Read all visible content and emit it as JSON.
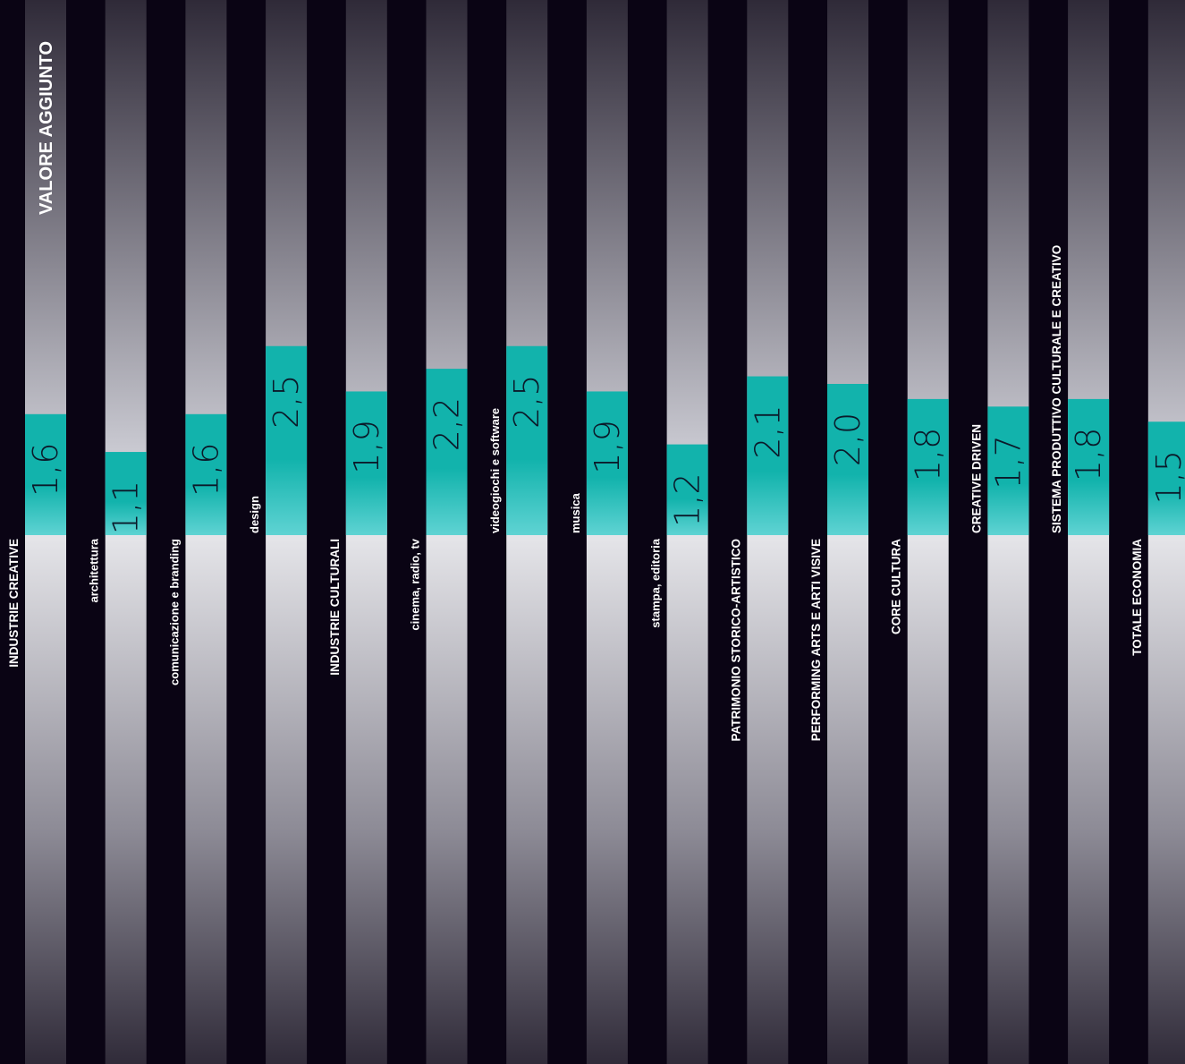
{
  "title": "VALORE AGGIUNTO",
  "colors": {
    "background": "#0a0414",
    "bar": "#12b3ac",
    "bar_light": "#5fd3d3",
    "column_top": "#36303f",
    "column_mid": "#c9c9d1",
    "column_bottom": "#37323f"
  },
  "chart_data": {
    "type": "bar",
    "title": "VALORE AGGIUNTO",
    "categories": [
      "INDUSTRIE CREATIVE",
      "architettura",
      "comunicazione e branding",
      "design",
      "INDUSTRIE CULTURALI",
      "cinema, radio, tv",
      "videogiochi e software",
      "musica",
      "stampa, editoria",
      "PATRIMONIO STORICO-ARTISTICO",
      "PERFORMING ARTS E ARTI VISIVE",
      "CORE CULTURA",
      "CREATIVE DRIVEN",
      "SISTEMA PRODUTTIVO CULTURALE E CREATIVO",
      "TOTALE ECONOMIA"
    ],
    "values": [
      1.6,
      1.1,
      1.6,
      2.5,
      1.9,
      2.2,
      2.5,
      1.9,
      1.2,
      2.1,
      2.0,
      1.8,
      1.7,
      1.8,
      1.5
    ],
    "value_labels": [
      "1,6",
      "1,1",
      "1,6",
      "2,5",
      "1,9",
      "2,2",
      "2,5",
      "1,9",
      "1,2",
      "2,1",
      "2,0",
      "1,8",
      "1,7",
      "1,8",
      "1,5"
    ],
    "label_position": [
      "below",
      "below",
      "below",
      "above",
      "below",
      "below",
      "above",
      "above",
      "below",
      "below",
      "below",
      "below",
      "above",
      "above",
      "below"
    ],
    "emphasis": [
      "major",
      "minor",
      "minor",
      "minor",
      "major",
      "minor",
      "minor",
      "minor",
      "minor",
      "major",
      "major",
      "major",
      "major",
      "major",
      "major"
    ],
    "orientation": "vertical",
    "grid": false,
    "legend": "none"
  }
}
